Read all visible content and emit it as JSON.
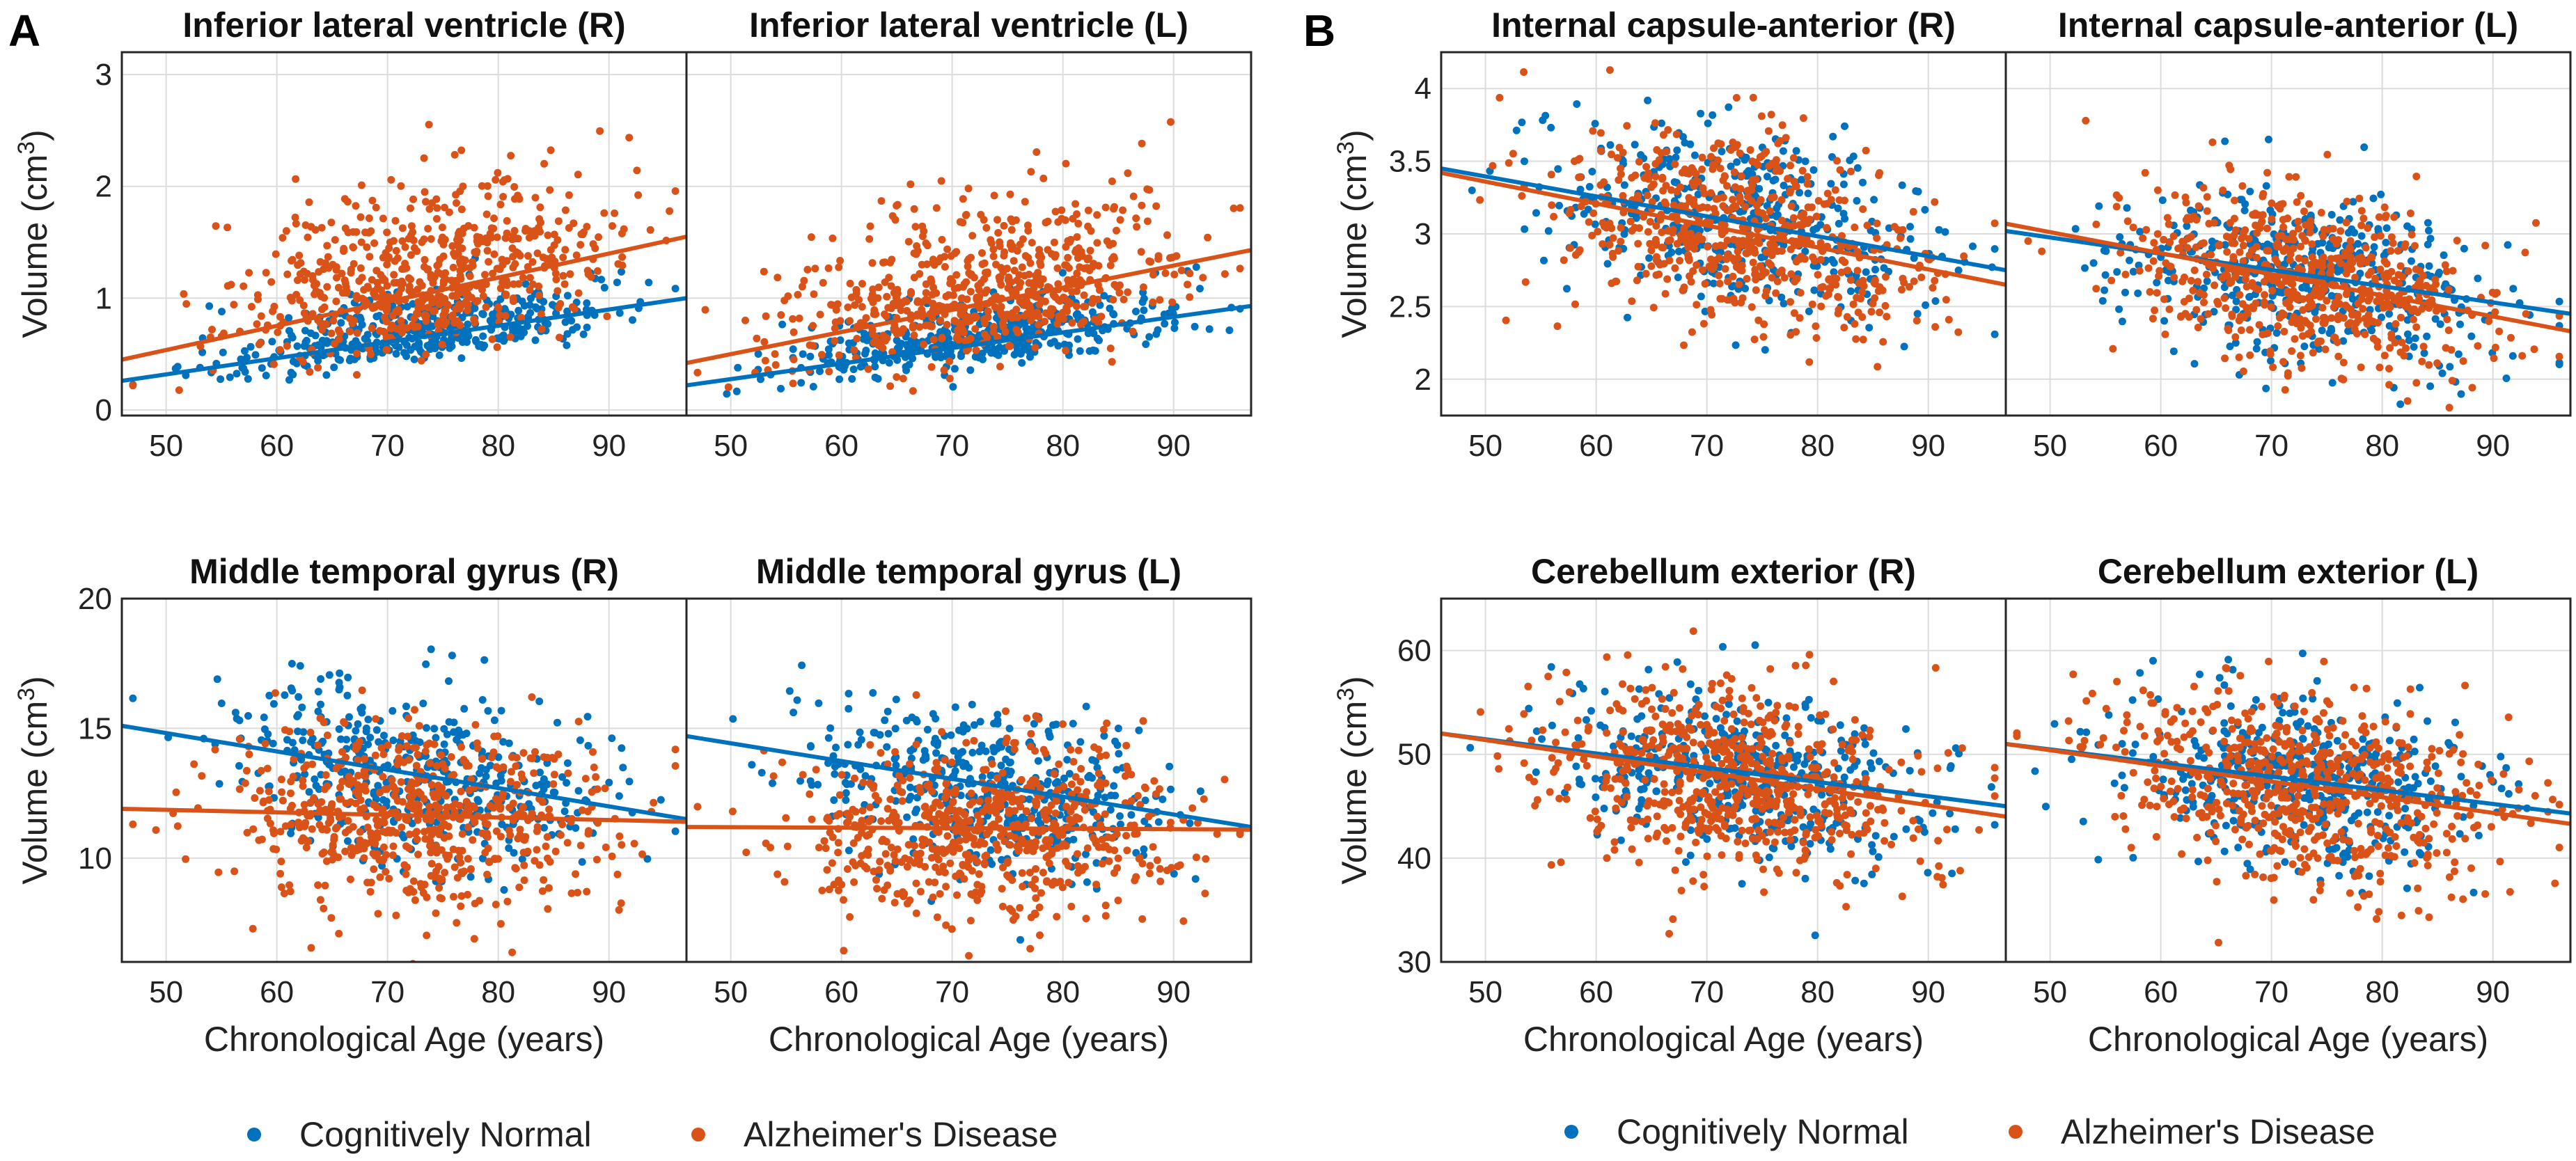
{
  "colors": {
    "cn": "#0072BD",
    "ad": "#D95319"
  },
  "panel_letters": [
    "A",
    "B"
  ],
  "legend": {
    "cn": "Cognitively Normal",
    "ad": "Alzheimer's Disease"
  },
  "xlabel": "Chronological Age (years)",
  "ylabel_prefix": "Volume (cm",
  "ylabel_sup": "3",
  "ylabel_suffix": ")",
  "xticks": [
    50,
    60,
    70,
    80,
    90
  ],
  "chart_data": [
    {
      "type": "scatter",
      "title": "Inferior lateral ventricle (R)",
      "xlim": [
        46,
        97
      ],
      "ylim": [
        -0.05,
        3.2
      ],
      "yticks": [
        0,
        1,
        2,
        3
      ],
      "series": [
        {
          "name": "Cognitively Normal",
          "fit": [
            [
              46,
              0.26
            ],
            [
              97,
              1.0
            ]
          ],
          "center": [
            48,
            0.3
          ],
          "spread": 0.18
        },
        {
          "name": "Alzheimer's Disease",
          "fit": [
            [
              46,
              0.45
            ],
            [
              97,
              1.55
            ]
          ],
          "center": [
            50,
            0.5
          ],
          "spread": 0.42
        }
      ]
    },
    {
      "type": "scatter",
      "title": "Inferior lateral ventricle (L)",
      "xlim": [
        46,
        97
      ],
      "ylim": [
        -0.05,
        3.2
      ],
      "yticks": [
        0,
        1,
        2,
        3
      ],
      "series": [
        {
          "name": "Cognitively Normal",
          "fit": [
            [
              46,
              0.22
            ],
            [
              97,
              0.93
            ]
          ],
          "spread": 0.17
        },
        {
          "name": "Alzheimer's Disease",
          "fit": [
            [
              46,
              0.42
            ],
            [
              97,
              1.43
            ]
          ],
          "spread": 0.4
        }
      ]
    },
    {
      "type": "scatter",
      "title": "Internal capsule-anterior (R)",
      "xlim": [
        46,
        97
      ],
      "ylim": [
        1.75,
        4.25
      ],
      "yticks": [
        2,
        2.5,
        3,
        3.5,
        4
      ],
      "series": [
        {
          "name": "Cognitively Normal",
          "fit": [
            [
              46,
              3.45
            ],
            [
              97,
              2.75
            ]
          ],
          "spread": 0.3
        },
        {
          "name": "Alzheimer's Disease",
          "fit": [
            [
              46,
              3.42
            ],
            [
              97,
              2.65
            ]
          ],
          "spread": 0.33
        }
      ]
    },
    {
      "type": "scatter",
      "title": "Internal capsule-anterior (L)",
      "xlim": [
        46,
        97
      ],
      "ylim": [
        1.75,
        4.25
      ],
      "yticks": [
        2,
        2.5,
        3,
        3.5,
        4
      ],
      "series": [
        {
          "name": "Cognitively Normal",
          "fit": [
            [
              46,
              3.02
            ],
            [
              97,
              2.45
            ]
          ],
          "spread": 0.28
        },
        {
          "name": "Alzheimer's Disease",
          "fit": [
            [
              46,
              3.07
            ],
            [
              97,
              2.33
            ]
          ],
          "spread": 0.3
        }
      ]
    },
    {
      "type": "scatter",
      "title": "Middle temporal gyrus (R)",
      "xlim": [
        46,
        97
      ],
      "ylim": [
        6,
        20
      ],
      "yticks": [
        10,
        15,
        20
      ],
      "series": [
        {
          "name": "Cognitively Normal",
          "fit": [
            [
              46,
              15.1
            ],
            [
              97,
              11.5
            ]
          ],
          "spread": 1.6
        },
        {
          "name": "Alzheimer's Disease",
          "fit": [
            [
              46,
              11.9
            ],
            [
              97,
              11.4
            ]
          ],
          "spread": 1.7
        }
      ]
    },
    {
      "type": "scatter",
      "title": "Middle temporal gyrus (L)",
      "xlim": [
        46,
        97
      ],
      "ylim": [
        6,
        20
      ],
      "yticks": [
        10,
        15,
        20
      ],
      "series": [
        {
          "name": "Cognitively Normal",
          "fit": [
            [
              46,
              14.7
            ],
            [
              97,
              11.2
            ]
          ],
          "spread": 1.6
        },
        {
          "name": "Alzheimer's Disease",
          "fit": [
            [
              46,
              11.2
            ],
            [
              97,
              11.1
            ]
          ],
          "spread": 1.7
        }
      ]
    },
    {
      "type": "scatter",
      "title": "Cerebellum exterior (R)",
      "xlim": [
        46,
        97
      ],
      "ylim": [
        30,
        65
      ],
      "yticks": [
        30,
        40,
        50,
        60
      ],
      "series": [
        {
          "name": "Cognitively Normal",
          "fit": [
            [
              46,
              52.0
            ],
            [
              97,
              45.0
            ]
          ],
          "spread": 4.0
        },
        {
          "name": "Alzheimer's Disease",
          "fit": [
            [
              46,
              52.0
            ],
            [
              97,
              44.0
            ]
          ],
          "spread": 4.5
        }
      ]
    },
    {
      "type": "scatter",
      "title": "Cerebellum exterior (L)",
      "xlim": [
        46,
        97
      ],
      "ylim": [
        30,
        65
      ],
      "yticks": [
        30,
        40,
        50,
        60
      ],
      "series": [
        {
          "name": "Cognitively Normal",
          "fit": [
            [
              46,
              51.0
            ],
            [
              97,
              44.3
            ]
          ],
          "spread": 4.0
        },
        {
          "name": "Alzheimer's Disease",
          "fit": [
            [
              46,
              51.0
            ],
            [
              97,
              43.3
            ]
          ],
          "spread": 4.5
        }
      ]
    }
  ]
}
